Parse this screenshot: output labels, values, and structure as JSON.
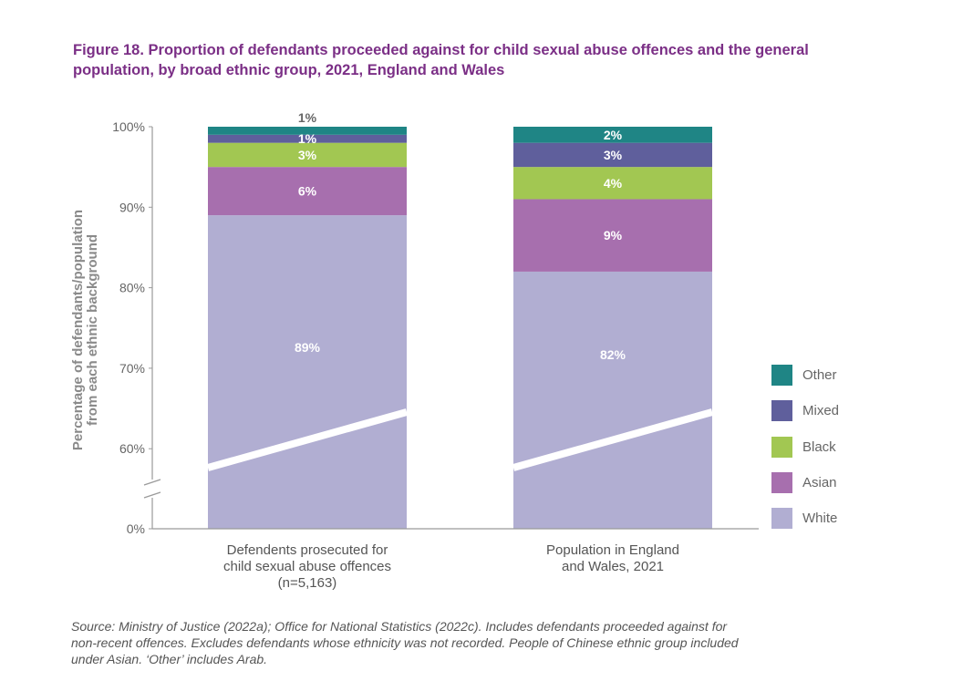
{
  "title": {
    "line1": "Figure 18. Proportion of defendants proceeded against for child sexual abuse offences and the general",
    "line2": "population, by broad ethnic group, 2021, England and Wales"
  },
  "chart_data": {
    "type": "bar",
    "stacked": true,
    "categories": [
      "Defendents prosecuted for child sexual abuse offences (n=5,163)",
      "Population in England and Wales, 2021"
    ],
    "category_lines": [
      [
        "Defendents prosecuted for",
        "child sexual abuse offences",
        "(n=5,163)"
      ],
      [
        "Population in England",
        "and Wales, 2021"
      ]
    ],
    "series": [
      {
        "name": "White",
        "color": "#b1aed2",
        "values": [
          89,
          82
        ],
        "labels": [
          "89%",
          "82%"
        ]
      },
      {
        "name": "Asian",
        "color": "#a76fae",
        "values": [
          6,
          9
        ],
        "labels": [
          "6%",
          "9%"
        ]
      },
      {
        "name": "Black",
        "color": "#a2c752",
        "values": [
          3,
          4
        ],
        "labels": [
          "3%",
          "4%"
        ]
      },
      {
        "name": "Mixed",
        "color": "#5f5f9c",
        "values": [
          1,
          3
        ],
        "labels": [
          "1%",
          "3%"
        ]
      },
      {
        "name": "Other",
        "color": "#1f8585",
        "values": [
          1,
          2
        ],
        "labels": [
          "1%",
          "2%"
        ]
      }
    ],
    "ylabel_lines": [
      "Percentage of defendants/population",
      "from each ethnic background"
    ],
    "yticks": [
      {
        "label": "100%",
        "value": 100
      },
      {
        "label": "90%",
        "value": 90
      },
      {
        "label": "80%",
        "value": 80
      },
      {
        "label": "70%",
        "value": 70
      },
      {
        "label": "60%",
        "value": 60
      },
      {
        "label": "0%",
        "value": 0
      }
    ],
    "axis_break": true,
    "ylim": [
      0,
      100
    ],
    "grid": false,
    "legend_position": "right"
  },
  "source": {
    "line1": "Source: Ministry of Justice (2022a); Office for National Statistics (2022c). Includes defendants proceeded against for",
    "line2": "non-recent offences. Excludes defendants whose ethnicity was not recorded. People of Chinese ethnic group included",
    "line3": "under Asian. ‘Other’ includes Arab."
  }
}
